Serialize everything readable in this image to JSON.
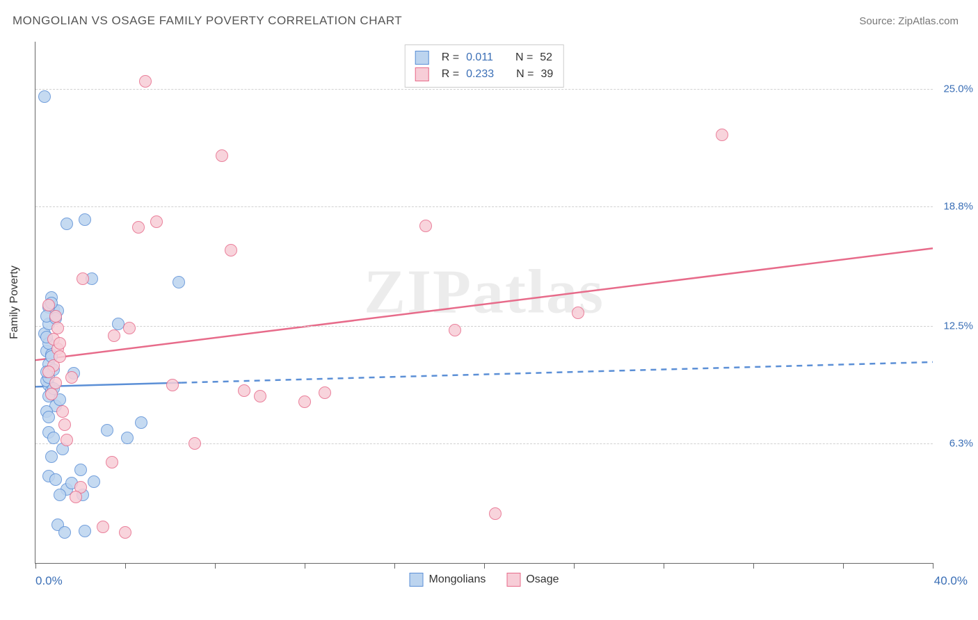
{
  "title": "MONGOLIAN VS OSAGE FAMILY POVERTY CORRELATION CHART",
  "source_prefix": "Source: ",
  "source_name": "ZipAtlas.com",
  "watermark": "ZIPatlas",
  "yaxis_title": "Family Poverty",
  "chart": {
    "type": "scatter",
    "xlim": [
      0,
      40
    ],
    "ylim": [
      0,
      27.5
    ],
    "x_min_label": "0.0%",
    "x_max_label": "40.0%",
    "x_ticks": [
      0,
      4,
      8,
      12,
      16,
      20,
      24,
      28,
      32,
      36,
      40
    ],
    "y_gridlines": [
      {
        "v": 6.3,
        "label": "6.3%"
      },
      {
        "v": 12.5,
        "label": "12.5%"
      },
      {
        "v": 18.8,
        "label": "18.8%"
      },
      {
        "v": 25.0,
        "label": "25.0%"
      }
    ],
    "background_color": "#ffffff",
    "grid_color": "#d0d0d0",
    "axis_color": "#666666",
    "tick_label_color": "#3b6fb6",
    "marker_radius": 8,
    "marker_stroke_width": 1.5,
    "trend_line_width": 2.5,
    "series": [
      {
        "key": "mongolians",
        "label": "Mongolians",
        "fill": "#bcd4ef",
        "stroke": "#5b8fd6",
        "R": "0.011",
        "N": "52",
        "trend": {
          "x1": 0,
          "y1": 9.3,
          "x2": 40,
          "y2": 10.6,
          "solid_until_x": 6.5
        },
        "points": [
          [
            0.4,
            24.6
          ],
          [
            0.6,
            9.4
          ],
          [
            0.7,
            9.1
          ],
          [
            0.6,
            8.8
          ],
          [
            0.5,
            11.2
          ],
          [
            0.7,
            11.0
          ],
          [
            0.8,
            13.4
          ],
          [
            1.0,
            13.3
          ],
          [
            0.6,
            13.5
          ],
          [
            2.5,
            15.0
          ],
          [
            6.4,
            14.8
          ],
          [
            1.4,
            17.9
          ],
          [
            2.2,
            18.1
          ],
          [
            3.7,
            12.6
          ],
          [
            0.4,
            12.1
          ],
          [
            0.6,
            10.5
          ],
          [
            0.8,
            10.2
          ],
          [
            0.6,
            12.6
          ],
          [
            0.9,
            8.3
          ],
          [
            1.1,
            8.6
          ],
          [
            0.6,
            6.9
          ],
          [
            0.8,
            6.6
          ],
          [
            1.2,
            6.0
          ],
          [
            0.7,
            5.6
          ],
          [
            0.6,
            4.6
          ],
          [
            0.9,
            4.4
          ],
          [
            1.4,
            3.9
          ],
          [
            1.1,
            3.6
          ],
          [
            2.1,
            3.6
          ],
          [
            1.6,
            4.2
          ],
          [
            2.6,
            4.3
          ],
          [
            2.0,
            4.9
          ],
          [
            4.7,
            7.4
          ],
          [
            3.2,
            7.0
          ],
          [
            1.7,
            10.0
          ],
          [
            1.0,
            2.0
          ],
          [
            1.3,
            1.6
          ],
          [
            2.2,
            1.7
          ],
          [
            0.5,
            9.6
          ],
          [
            0.6,
            9.8
          ],
          [
            0.8,
            9.2
          ],
          [
            0.5,
            13.0
          ],
          [
            0.7,
            14.0
          ],
          [
            0.6,
            11.6
          ],
          [
            0.9,
            12.9
          ],
          [
            0.5,
            8.0
          ],
          [
            0.6,
            7.7
          ],
          [
            0.7,
            10.9
          ],
          [
            0.5,
            11.9
          ],
          [
            0.7,
            13.7
          ],
          [
            4.1,
            6.6
          ],
          [
            0.5,
            10.1
          ]
        ]
      },
      {
        "key": "osage",
        "label": "Osage",
        "fill": "#f7cdd7",
        "stroke": "#e76b8a",
        "R": "0.233",
        "N": "39",
        "trend": {
          "x1": 0,
          "y1": 10.7,
          "x2": 40,
          "y2": 16.6,
          "solid_until_x": 40
        },
        "points": [
          [
            4.9,
            25.4
          ],
          [
            8.3,
            21.5
          ],
          [
            30.6,
            22.6
          ],
          [
            0.8,
            10.4
          ],
          [
            1.0,
            11.3
          ],
          [
            1.1,
            10.9
          ],
          [
            0.6,
            10.1
          ],
          [
            0.9,
            9.5
          ],
          [
            1.2,
            8.0
          ],
          [
            0.7,
            8.9
          ],
          [
            1.3,
            7.3
          ],
          [
            1.6,
            9.8
          ],
          [
            2.1,
            15.0
          ],
          [
            4.2,
            12.4
          ],
          [
            3.5,
            12.0
          ],
          [
            5.4,
            18.0
          ],
          [
            4.6,
            17.7
          ],
          [
            8.7,
            16.5
          ],
          [
            17.4,
            17.8
          ],
          [
            18.7,
            12.3
          ],
          [
            24.2,
            13.2
          ],
          [
            9.3,
            9.1
          ],
          [
            10.0,
            8.8
          ],
          [
            12.0,
            8.5
          ],
          [
            12.9,
            9.0
          ],
          [
            6.1,
            9.4
          ],
          [
            7.1,
            6.3
          ],
          [
            3.4,
            5.3
          ],
          [
            2.0,
            4.0
          ],
          [
            1.8,
            3.5
          ],
          [
            3.0,
            1.9
          ],
          [
            20.5,
            2.6
          ],
          [
            0.8,
            11.8
          ],
          [
            1.0,
            12.4
          ],
          [
            0.6,
            13.6
          ],
          [
            0.9,
            13.0
          ],
          [
            4.0,
            1.6
          ],
          [
            1.4,
            6.5
          ],
          [
            1.1,
            11.6
          ]
        ]
      }
    ]
  },
  "legend_top": {
    "R_label": "R  =",
    "N_label": "N  ="
  }
}
